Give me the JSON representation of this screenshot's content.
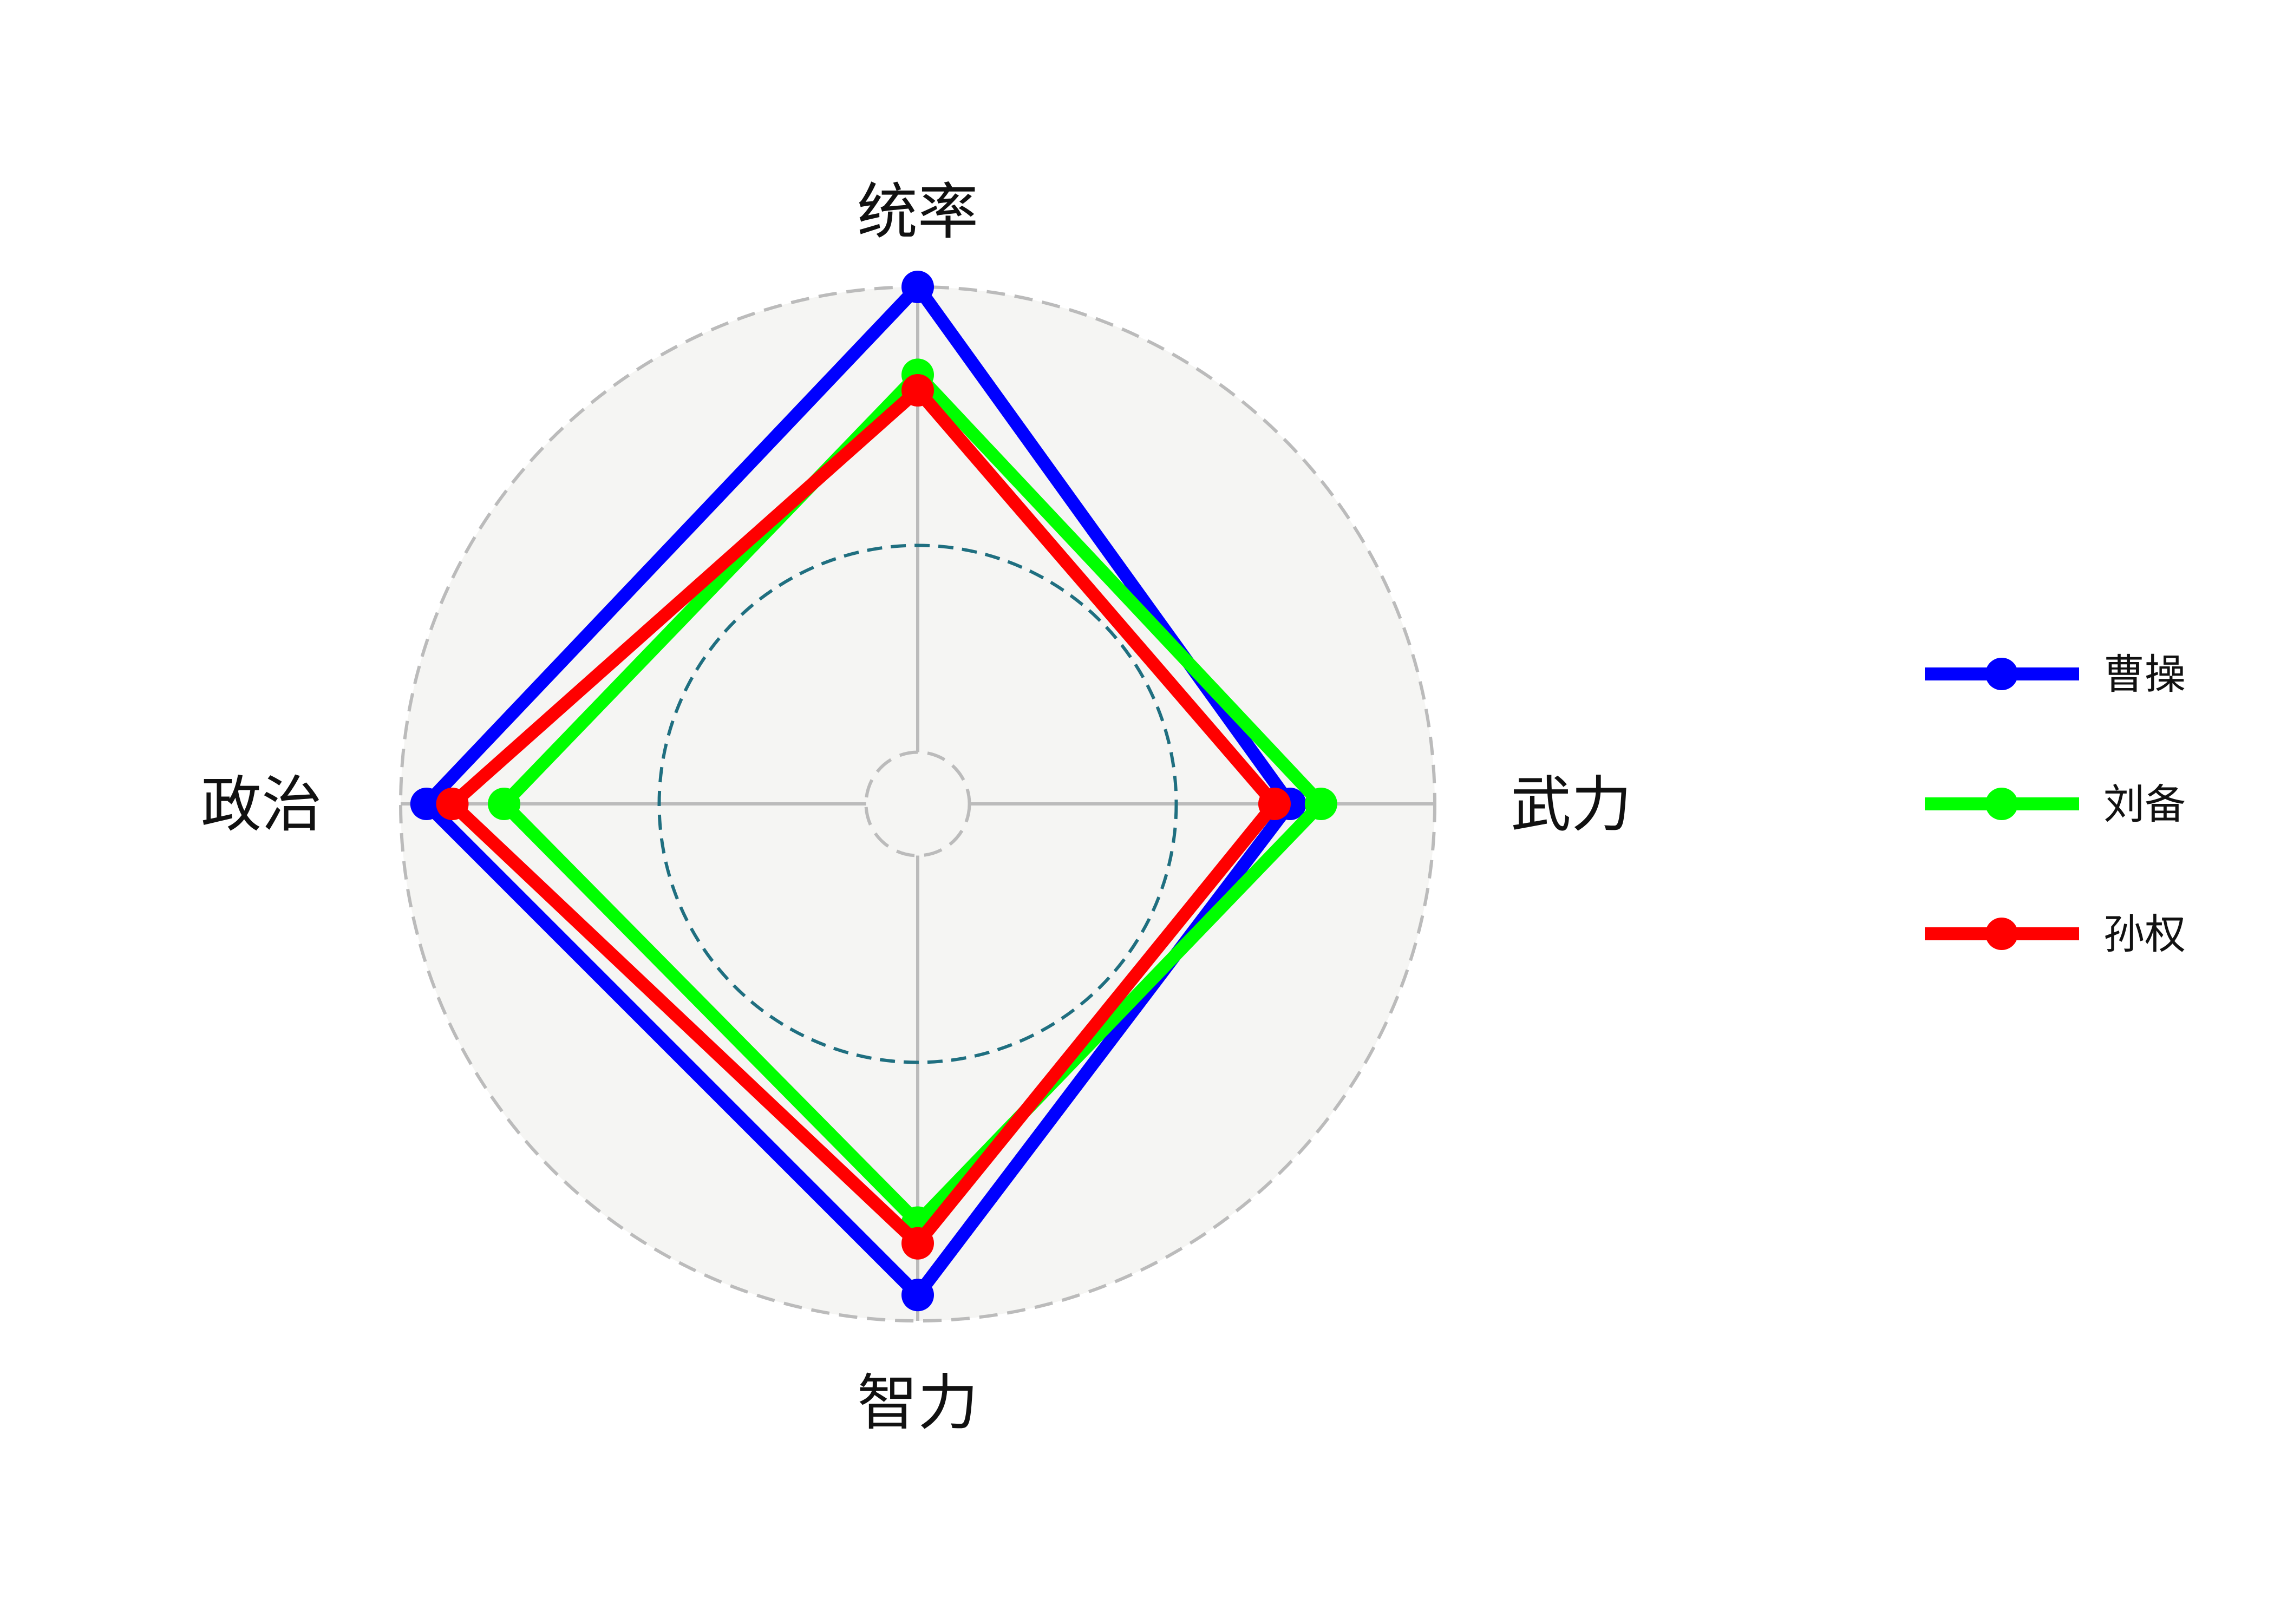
{
  "chart_data": {
    "type": "radar",
    "title": "",
    "axes": [
      "统率",
      "武力",
      "智力",
      "政治"
    ],
    "rmin": 0,
    "rmax": 100,
    "reference_circle": 50,
    "inner_circle": 10,
    "grid": true,
    "legend_position": "right",
    "series": [
      {
        "name": "曹操",
        "color": "#0000ff",
        "values": [
          100,
          72,
          95,
          95
        ]
      },
      {
        "name": "刘备",
        "color": "#00ff00",
        "values": [
          83,
          78,
          81,
          80
        ]
      },
      {
        "name": "孙权",
        "color": "#ff0000",
        "values": [
          80,
          69,
          85,
          90
        ]
      }
    ],
    "colors": {
      "plot_background": "#f5f5f3",
      "outer_circle": "#bbbbbb",
      "reference_circle": "#1f6f80",
      "spokes": "#bbbbbb"
    }
  }
}
